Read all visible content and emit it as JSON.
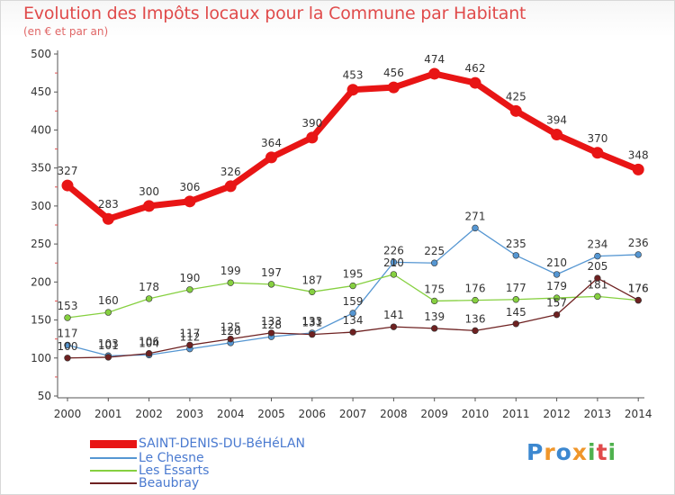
{
  "title": "Evolution des Impôts locaux pour la Commune par Habitant",
  "subtitle": "(en € et par an)",
  "logo": {
    "text": "Proxiti",
    "colors": [
      "#3c88d0",
      "#f0962a",
      "#3c88d0",
      "#f0962a",
      "#4fb14e",
      "#e04b4b",
      "#4fb14e"
    ]
  },
  "chart_data": {
    "type": "line",
    "x": [
      "2000",
      "2001",
      "2002",
      "2003",
      "2004",
      "2005",
      "2006",
      "2007",
      "2008",
      "2009",
      "2010",
      "2011",
      "2012",
      "2013",
      "2014"
    ],
    "ylim": [
      50,
      500
    ],
    "yticks": [
      50,
      100,
      150,
      200,
      250,
      300,
      350,
      400,
      450,
      500
    ],
    "grid": false,
    "legend_position": "bottom-left",
    "series": [
      {
        "name": "SAINT-DENIS-DU-BéHéLAN",
        "color": "#e81515",
        "emphasis": true,
        "values": [
          327,
          283,
          300,
          306,
          326,
          364,
          390,
          453,
          456,
          474,
          462,
          425,
          394,
          370,
          348
        ]
      },
      {
        "name": "Le Chesne",
        "color": "#5596d2",
        "values": [
          117,
          103,
          104,
          112,
          120,
          128,
          133,
          159,
          226,
          225,
          271,
          235,
          210,
          234,
          236
        ]
      },
      {
        "name": "Les Essarts",
        "color": "#86d040",
        "values": [
          153,
          160,
          178,
          190,
          199,
          197,
          187,
          195,
          210,
          175,
          176,
          177,
          179,
          181,
          176
        ]
      },
      {
        "name": "Beaubray",
        "color": "#6e2121",
        "values": [
          100,
          101,
          106,
          117,
          125,
          133,
          131,
          134,
          141,
          139,
          136,
          145,
          157,
          205,
          176
        ]
      }
    ]
  }
}
